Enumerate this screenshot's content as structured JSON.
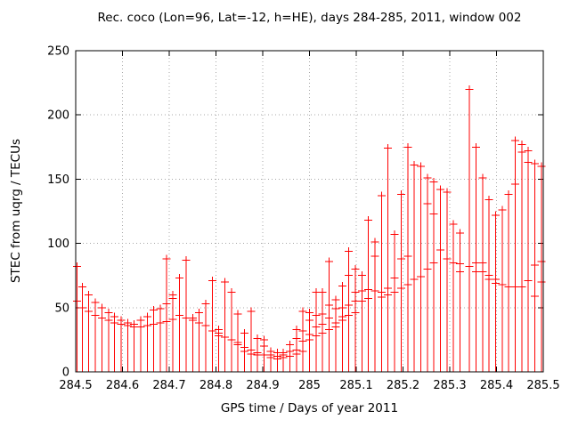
{
  "title": "Rec. coco (Lon=96, Lat=-12, h=HE), days 284-285, 2011, window 002",
  "chart_data": {
    "type": "impulses+points",
    "title": "Rec. coco (Lon=96, Lat=-12, h=HE), days 284-285, 2011, window 002",
    "xlabel": "GPS time / Days of year 2011",
    "ylabel": "STEC from uqrg / TECUs",
    "xlim": [
      284.5,
      285.5
    ],
    "ylim": [
      0,
      250
    ],
    "grid": "dotted",
    "legend": "none",
    "series_color": "#ff0000",
    "border_color": "#000000",
    "grid_color": "#a8a8a8",
    "xticks": [
      {
        "v": 284.5,
        "label": "284.5"
      },
      {
        "v": 284.6,
        "label": "284.6"
      },
      {
        "v": 284.7,
        "label": "284.7"
      },
      {
        "v": 284.8,
        "label": "284.8"
      },
      {
        "v": 284.9,
        "label": "284.9"
      },
      {
        "v": 285.0,
        "label": "285"
      },
      {
        "v": 285.1,
        "label": "285.1"
      },
      {
        "v": 285.2,
        "label": "285.2"
      },
      {
        "v": 285.3,
        "label": "285.3"
      },
      {
        "v": 285.4,
        "label": "285.4"
      },
      {
        "v": 285.5,
        "label": "285.5"
      }
    ],
    "yticks": [
      {
        "v": 0,
        "label": "0"
      },
      {
        "v": 50,
        "label": "50"
      },
      {
        "v": 100,
        "label": "100"
      },
      {
        "v": 150,
        "label": "150"
      },
      {
        "v": 200,
        "label": "200"
      },
      {
        "v": 250,
        "label": "250"
      }
    ],
    "points_format": [
      "day_of_year",
      "impulse_top_tecu",
      "extra_marker_tecu_list"
    ],
    "points": [
      [
        284.503,
        82,
        [
          55
        ]
      ],
      [
        284.514,
        66,
        [
          50
        ]
      ],
      [
        284.528,
        60,
        [
          47
        ]
      ],
      [
        284.542,
        54,
        [
          44
        ]
      ],
      [
        284.556,
        50,
        [
          42
        ]
      ],
      [
        284.57,
        46,
        [
          40
        ]
      ],
      [
        284.583,
        43,
        [
          38
        ]
      ],
      [
        284.597,
        40,
        [
          37
        ]
      ],
      [
        284.611,
        38,
        [
          36
        ]
      ],
      [
        284.625,
        37,
        [
          35
        ]
      ],
      [
        284.639,
        40,
        [
          35
        ]
      ],
      [
        284.653,
        43,
        [
          36
        ]
      ],
      [
        284.667,
        48,
        [
          37
        ]
      ],
      [
        284.681,
        49,
        [
          38
        ]
      ],
      [
        284.694,
        88,
        [
          53,
          39
        ]
      ],
      [
        284.708,
        60,
        [
          57,
          41
        ]
      ],
      [
        284.722,
        73,
        [
          44
        ]
      ],
      [
        284.736,
        87,
        [
          42
        ]
      ],
      [
        284.75,
        42,
        [
          40
        ]
      ],
      [
        284.764,
        46,
        [
          38
        ]
      ],
      [
        284.778,
        53,
        [
          36
        ]
      ],
      [
        284.792,
        71,
        [
          32
        ]
      ],
      [
        284.806,
        33,
        [
          30,
          28
        ]
      ],
      [
        284.819,
        70,
        [
          27
        ]
      ],
      [
        284.833,
        62,
        [
          25
        ]
      ],
      [
        284.847,
        45,
        [
          23,
          21
        ]
      ],
      [
        284.861,
        30,
        [
          19,
          16
        ]
      ],
      [
        284.875,
        47,
        [
          17,
          14
        ]
      ],
      [
        284.889,
        26,
        [
          15,
          13
        ]
      ],
      [
        284.903,
        25,
        [
          20,
          13
        ]
      ],
      [
        284.917,
        16,
        [
          13,
          11
        ]
      ],
      [
        284.931,
        15,
        [
          12,
          10
        ]
      ],
      [
        284.944,
        15,
        [
          13,
          11
        ]
      ],
      [
        284.958,
        21,
        [
          16,
          12
        ]
      ],
      [
        284.972,
        33,
        [
          26,
          17,
          14
        ]
      ],
      [
        284.986,
        47,
        [
          32,
          24,
          16
        ]
      ],
      [
        285.0,
        46,
        [
          40,
          29,
          25
        ]
      ],
      [
        285.014,
        62,
        [
          44,
          35,
          28
        ]
      ],
      [
        285.028,
        62,
        [
          45,
          37,
          30
        ]
      ],
      [
        285.042,
        86,
        [
          52,
          42,
          33
        ]
      ],
      [
        285.056,
        56,
        [
          49,
          38,
          35
        ]
      ],
      [
        285.07,
        67,
        [
          50,
          43,
          40
        ]
      ],
      [
        285.084,
        94,
        [
          75,
          52,
          44
        ]
      ],
      [
        285.098,
        80,
        [
          62,
          55,
          46
        ]
      ],
      [
        285.112,
        75,
        [
          63,
          55
        ]
      ],
      [
        285.126,
        118,
        [
          64,
          57
        ]
      ],
      [
        285.14,
        101,
        [
          90,
          63
        ]
      ],
      [
        285.154,
        137,
        [
          62,
          58
        ]
      ],
      [
        285.168,
        174,
        [
          65,
          60
        ]
      ],
      [
        285.182,
        107,
        [
          73,
          62
        ]
      ],
      [
        285.196,
        138,
        [
          88,
          65
        ]
      ],
      [
        285.21,
        175,
        [
          90,
          68
        ]
      ],
      [
        285.224,
        161,
        [
          72
        ]
      ],
      [
        285.238,
        160,
        [
          74
        ]
      ],
      [
        285.252,
        151,
        [
          131,
          80
        ]
      ],
      [
        285.266,
        148,
        [
          123,
          85
        ]
      ],
      [
        285.28,
        142,
        [
          95
        ]
      ],
      [
        285.294,
        140,
        [
          88
        ]
      ],
      [
        285.308,
        115,
        [
          85
        ]
      ],
      [
        285.322,
        108,
        [
          84,
          78
        ]
      ],
      [
        285.342,
        220,
        [
          82
        ]
      ],
      [
        285.356,
        175,
        [
          85,
          78
        ]
      ],
      [
        285.37,
        151,
        [
          85,
          78
        ]
      ],
      [
        285.384,
        134,
        [
          75,
          72
        ]
      ],
      [
        285.398,
        122,
        [
          72,
          69
        ]
      ],
      [
        285.412,
        126,
        [
          68
        ]
      ],
      [
        285.426,
        138,
        [
          66
        ]
      ],
      [
        285.44,
        180,
        [
          146,
          66
        ]
      ],
      [
        285.454,
        177,
        [
          171,
          66
        ]
      ],
      [
        285.468,
        172,
        [
          163,
          71
        ]
      ],
      [
        285.482,
        162,
        [
          83,
          59
        ]
      ],
      [
        285.496,
        160,
        [
          86,
          70
        ]
      ]
    ]
  }
}
